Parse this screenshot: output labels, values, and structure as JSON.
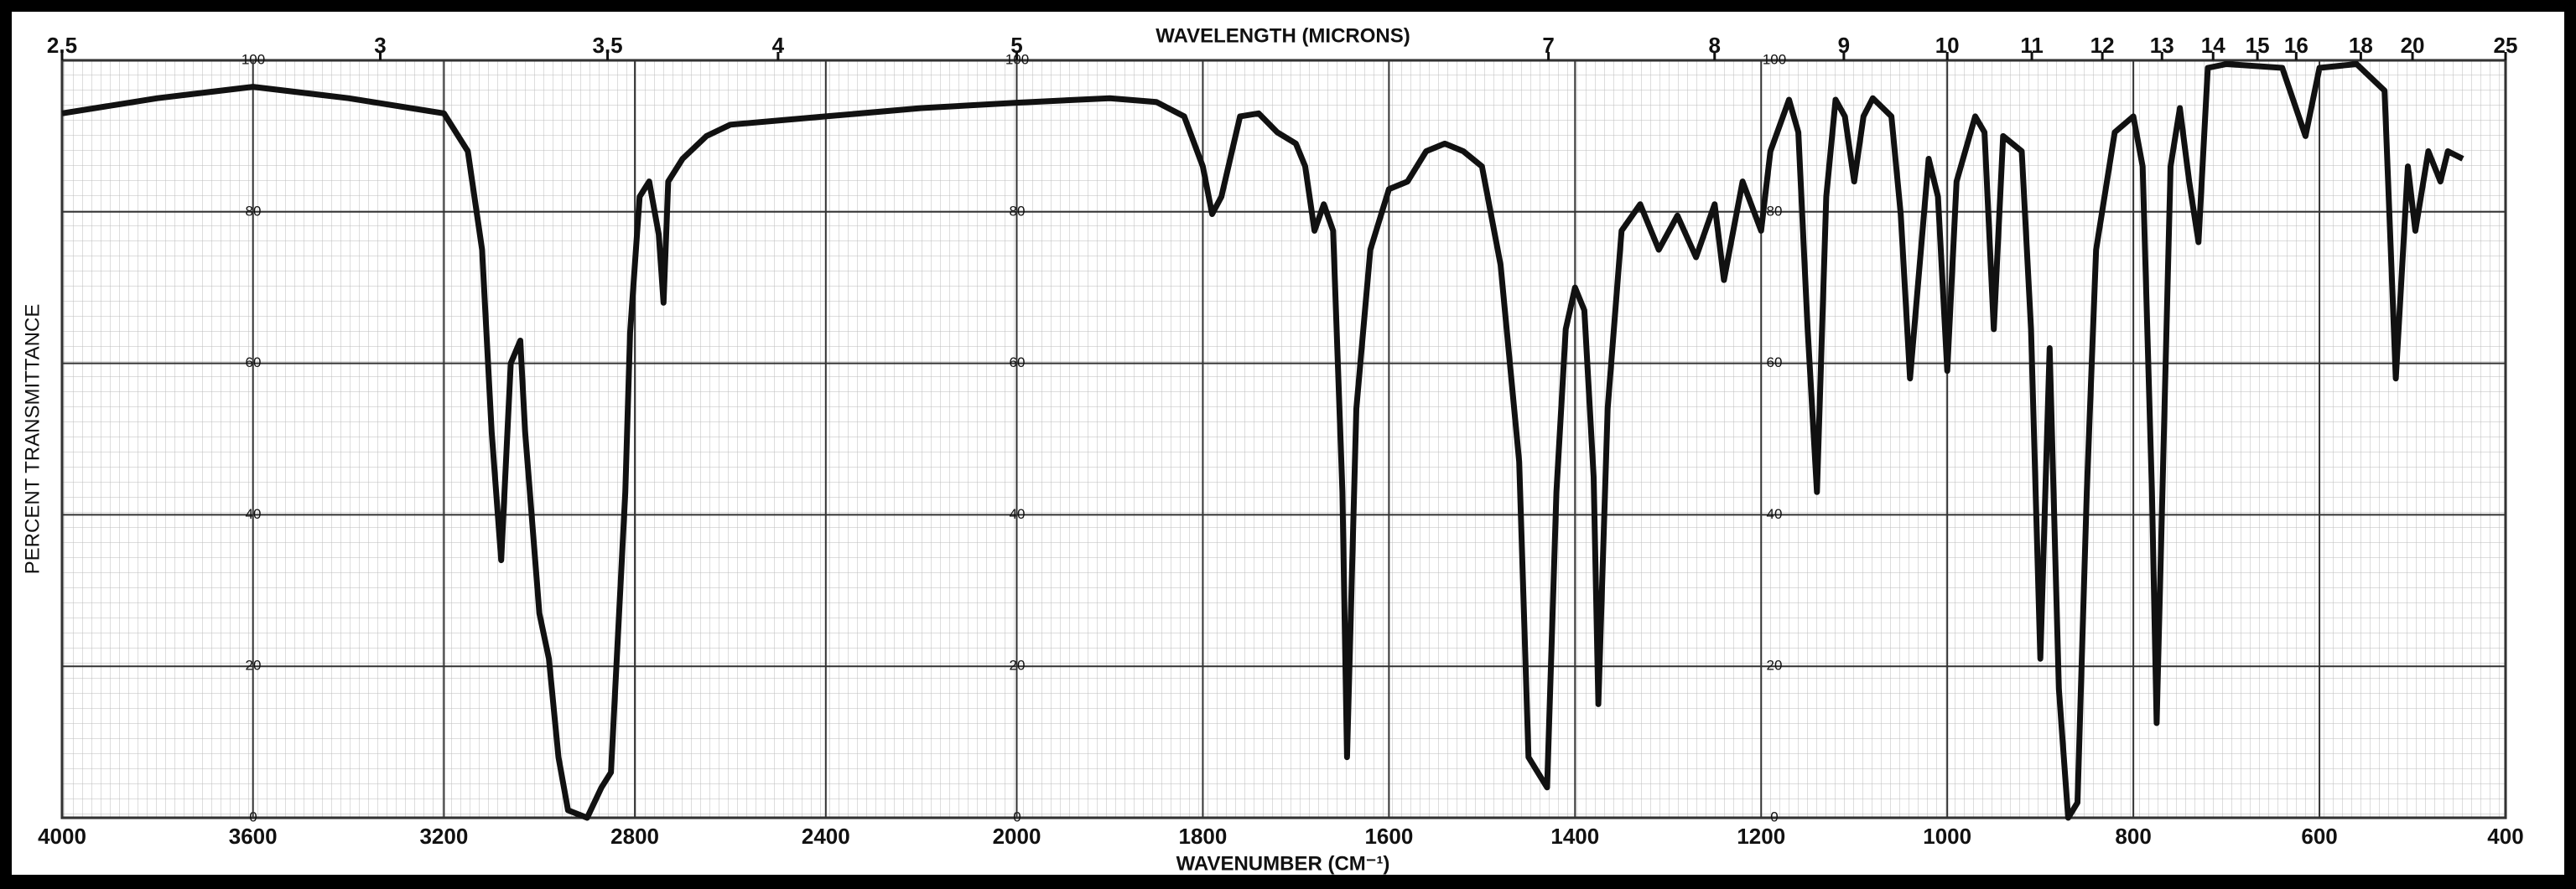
{
  "chart_data": {
    "type": "line",
    "title": "WAVELENGTH (MICRONS)",
    "x_label": "WAVENUMBER (CM⁻¹)",
    "y_label": "PERCENT TRANSMITTANCE",
    "color": "#111111",
    "grid": true,
    "xbreak": 2000,
    "xlim": [
      4000,
      400
    ],
    "xticks": [
      4000,
      3600,
      3200,
      2800,
      2400,
      2000,
      1800,
      1600,
      1400,
      1200,
      1000,
      800,
      600,
      400
    ],
    "x2ticks": [
      2.5,
      3,
      3.5,
      4,
      5,
      7,
      8,
      9,
      10,
      11,
      12,
      13,
      14,
      15,
      16,
      18,
      20,
      25
    ],
    "ylim": [
      0,
      100
    ],
    "yticks": [
      0,
      20,
      40,
      60,
      80,
      100
    ],
    "x": [
      4000,
      3800,
      3600,
      3400,
      3200,
      3150,
      3120,
      3100,
      3080,
      3060,
      3040,
      3030,
      3000,
      2980,
      2960,
      2940,
      2900,
      2870,
      2850,
      2820,
      2810,
      2790,
      2770,
      2750,
      2740,
      2730,
      2700,
      2650,
      2600,
      2400,
      2200,
      2000,
      1900,
      1850,
      1820,
      1800,
      1790,
      1780,
      1760,
      1740,
      1720,
      1700,
      1690,
      1680,
      1670,
      1660,
      1650,
      1645,
      1635,
      1620,
      1600,
      1580,
      1560,
      1540,
      1520,
      1500,
      1480,
      1460,
      1450,
      1440,
      1430,
      1420,
      1410,
      1400,
      1390,
      1380,
      1375,
      1365,
      1350,
      1330,
      1310,
      1290,
      1270,
      1250,
      1240,
      1220,
      1200,
      1190,
      1170,
      1160,
      1150,
      1140,
      1130,
      1120,
      1110,
      1100,
      1090,
      1080,
      1060,
      1050,
      1040,
      1020,
      1010,
      1000,
      990,
      970,
      960,
      950,
      940,
      920,
      910,
      900,
      890,
      880,
      870,
      860,
      850,
      840,
      820,
      800,
      790,
      780,
      775,
      760,
      750,
      740,
      730,
      720,
      700,
      640,
      615,
      600,
      560,
      530,
      518,
      505,
      497,
      483,
      470,
      462,
      446
    ],
    "values": [
      93,
      95,
      96.5,
      95,
      93,
      88,
      75,
      51,
      34,
      60,
      63,
      51,
      27,
      21,
      8,
      1,
      0,
      4,
      6,
      43,
      64,
      82,
      84,
      77,
      68,
      84,
      87,
      90,
      91.5,
      92.6,
      93.7,
      94.4,
      95,
      94.5,
      92.6,
      86,
      79.7,
      82,
      92.6,
      93,
      90.5,
      89,
      86,
      77.5,
      81,
      77.5,
      43,
      8,
      54,
      75,
      83,
      84,
      88,
      89,
      88,
      86,
      73,
      47,
      8,
      6,
      4,
      43,
      64.5,
      70,
      67,
      45,
      15,
      54,
      77.5,
      81,
      75,
      79.5,
      74,
      81,
      71,
      84,
      77.5,
      88,
      94.8,
      90.5,
      64.5,
      43,
      82,
      94.8,
      92.6,
      84,
      92.6,
      95,
      92.6,
      79.7,
      58,
      87,
      82,
      59,
      84,
      92.6,
      90.5,
      64.5,
      90,
      88,
      64.5,
      21,
      62,
      17,
      0,
      2,
      43,
      75,
      90.5,
      92.6,
      86,
      43,
      12.5,
      86,
      93.7,
      84,
      76,
      99,
      99.5,
      99,
      90,
      99,
      99.5,
      96,
      58,
      86,
      77.5,
      88,
      84,
      88,
      87
    ]
  }
}
